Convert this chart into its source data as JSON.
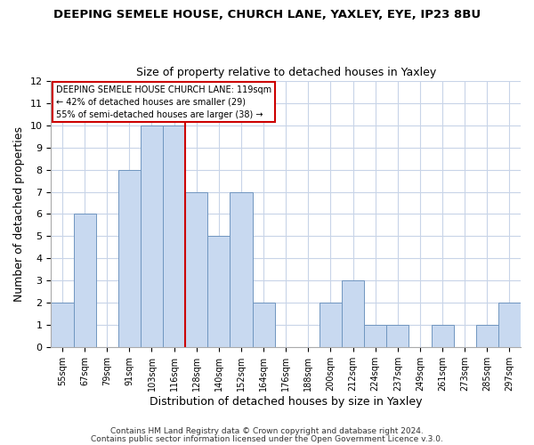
{
  "title": "DEEPING SEMELE HOUSE, CHURCH LANE, YAXLEY, EYE, IP23 8BU",
  "subtitle": "Size of property relative to detached houses in Yaxley",
  "xlabel": "Distribution of detached houses by size in Yaxley",
  "ylabel": "Number of detached properties",
  "bin_labels": [
    "55sqm",
    "67sqm",
    "79sqm",
    "91sqm",
    "103sqm",
    "116sqm",
    "128sqm",
    "140sqm",
    "152sqm",
    "164sqm",
    "176sqm",
    "188sqm",
    "200sqm",
    "212sqm",
    "224sqm",
    "237sqm",
    "249sqm",
    "261sqm",
    "273sqm",
    "285sqm",
    "297sqm"
  ],
  "bar_heights": [
    2,
    6,
    0,
    8,
    10,
    10,
    7,
    5,
    7,
    2,
    0,
    0,
    2,
    3,
    1,
    1,
    0,
    1,
    0,
    1,
    2
  ],
  "bar_color": "#c8d9f0",
  "bar_edge_color": "#7096c0",
  "vline_x": 5.5,
  "vline_color": "#cc0000",
  "ylim": [
    0,
    12
  ],
  "yticks": [
    0,
    1,
    2,
    3,
    4,
    5,
    6,
    7,
    8,
    9,
    10,
    11,
    12
  ],
  "annotation_title": "DEEPING SEMELE HOUSE CHURCH LANE: 119sqm",
  "annotation_line1": "← 42% of detached houses are smaller (29)",
  "annotation_line2": "55% of semi-detached houses are larger (38) →",
  "footer1": "Contains HM Land Registry data © Crown copyright and database right 2024.",
  "footer2": "Contains public sector information licensed under the Open Government Licence v.3.0.",
  "background_color": "#ffffff",
  "grid_color": "#c8d4e8"
}
